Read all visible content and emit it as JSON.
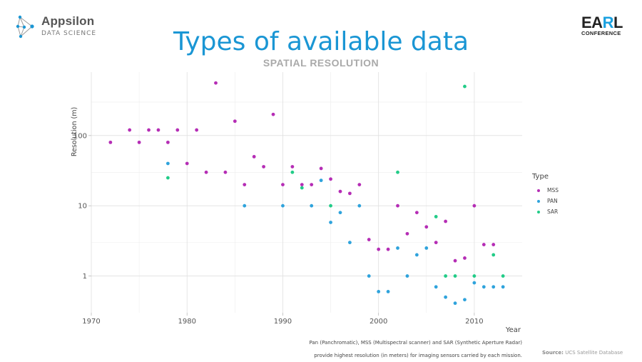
{
  "logo_left": {
    "name": "Appsilon",
    "subtitle": "DATA SCIENCE"
  },
  "logo_right": {
    "word_prefix": "EA",
    "word_accent": "R",
    "word_suffix": "L",
    "subtitle": "CONFERENCE"
  },
  "header": {
    "title": "Types of available data",
    "subtitle": "SPATIAL RESOLUTION"
  },
  "caption": {
    "line1": "Pan (Panchromatic), MSS (Multispectral scanner) and SAR (Synthetic Aperture Radar)",
    "line2": "provide highest resolution (in meters) for imaging sensors carried by each mission."
  },
  "source": {
    "label": "Source:",
    "text": "UCS Satellite Database"
  },
  "colors": {
    "MSS": "#b52db5",
    "PAN": "#2fa3dc",
    "SAR": "#22cc88",
    "title": "#1a96d4"
  },
  "chart_data": {
    "type": "scatter",
    "xlabel": "Year",
    "ylabel": "Resolution (m)",
    "xlim": [
      1970,
      2015
    ],
    "ylim": [
      0.3,
      800
    ],
    "y_scale": "log10",
    "x_ticks": [
      1970,
      1980,
      1990,
      2000,
      2010
    ],
    "y_ticks": [
      1,
      10,
      100
    ],
    "y_tick_labels": [
      "1",
      "10",
      "100"
    ],
    "grid": true,
    "legend_position": "right",
    "legend_title": "Type",
    "series": [
      {
        "name": "MSS",
        "points": [
          [
            1972,
            80
          ],
          [
            1974,
            120
          ],
          [
            1975,
            80
          ],
          [
            1976,
            120
          ],
          [
            1977,
            120
          ],
          [
            1978,
            80
          ],
          [
            1979,
            120
          ],
          [
            1980,
            40
          ],
          [
            1981,
            120
          ],
          [
            1982,
            30
          ],
          [
            1983,
            560
          ],
          [
            1984,
            30
          ],
          [
            1985,
            160
          ],
          [
            1986,
            20
          ],
          [
            1987,
            50
          ],
          [
            1988,
            36
          ],
          [
            1989,
            200
          ],
          [
            1990,
            20
          ],
          [
            1991,
            36
          ],
          [
            1992,
            20
          ],
          [
            1993,
            20
          ],
          [
            1994,
            34
          ],
          [
            1995,
            24
          ],
          [
            1996,
            16
          ],
          [
            1997,
            15
          ],
          [
            1998,
            20
          ],
          [
            1999,
            3.3
          ],
          [
            2000,
            2.4
          ],
          [
            2001,
            2.4
          ],
          [
            2002,
            10
          ],
          [
            2003,
            4
          ],
          [
            2004,
            8
          ],
          [
            2005,
            5
          ],
          [
            2006,
            3
          ],
          [
            2007,
            6
          ],
          [
            2008,
            1.65
          ],
          [
            2009,
            1.8
          ],
          [
            2010,
            10
          ],
          [
            2011,
            2.8
          ],
          [
            2012,
            2.8
          ]
        ]
      },
      {
        "name": "PAN",
        "points": [
          [
            1978,
            40
          ],
          [
            1986,
            10
          ],
          [
            1990,
            10
          ],
          [
            1993,
            10
          ],
          [
            1994,
            23
          ],
          [
            1995,
            5.8
          ],
          [
            1996,
            8
          ],
          [
            1997,
            3
          ],
          [
            1998,
            10
          ],
          [
            1999,
            1
          ],
          [
            2000,
            0.6
          ],
          [
            2001,
            0.6
          ],
          [
            2002,
            2.5
          ],
          [
            2003,
            1
          ],
          [
            2004,
            2
          ],
          [
            2005,
            2.5
          ],
          [
            2006,
            0.7
          ],
          [
            2007,
            0.5
          ],
          [
            2008,
            0.41
          ],
          [
            2009,
            0.46
          ],
          [
            2010,
            0.8
          ],
          [
            2011,
            0.7
          ],
          [
            2012,
            0.7
          ],
          [
            2013,
            0.7
          ]
        ]
      },
      {
        "name": "SAR",
        "points": [
          [
            1978,
            25
          ],
          [
            1991,
            30
          ],
          [
            1992,
            18
          ],
          [
            1995,
            10
          ],
          [
            2002,
            30
          ],
          [
            2006,
            7
          ],
          [
            2007,
            1
          ],
          [
            2008,
            1
          ],
          [
            2009,
            500
          ],
          [
            2010,
            1
          ],
          [
            2012,
            2
          ],
          [
            2013,
            1
          ]
        ]
      }
    ]
  }
}
